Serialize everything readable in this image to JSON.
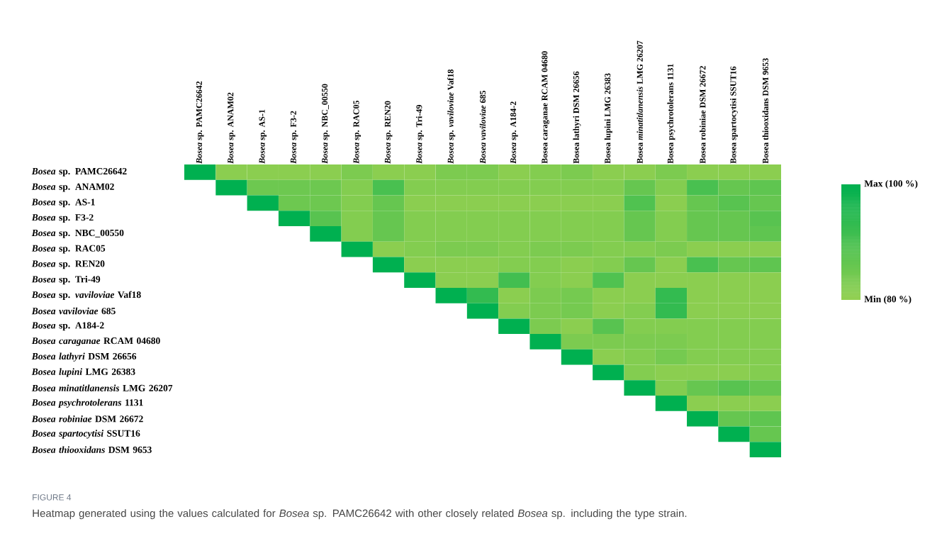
{
  "chart_data": {
    "type": "heatmap",
    "categories": [
      "*Bosea* sp. PAMC26642",
      "*Bosea* sp. ANAM02",
      "*Bosea* sp. AS-1",
      "*Bosea* sp. F3-2",
      "*Bosea* sp. NBC_00550",
      "*Bosea* sp. RAC05",
      "*Bosea* sp. REN20",
      "*Bosea* sp. Tri-49",
      "*Bosea* sp. *vaviloviae* Vaf18",
      "*Bosea vaviloviae* 685",
      "*Bosea* sp. A184-2",
      "Bosea caraganae RCAM 04680",
      "Bosea lathyri DSM 26656",
      "Bosea lupini LMG 26383",
      "Bosea *minatitlanensis* LMG 26207",
      "Bosea psychrotolerans 1131",
      "Bosea robiniae DSM 26672",
      "Bosea spartocytisi SSUT16",
      "Bosea thiooxidans DSM 9653"
    ],
    "y_categories": [
      "*Bosea* sp. PAMC26642",
      "*Bosea* sp. ANAM02",
      "*Bosea* sp. AS-1",
      "*Bosea* sp. F3-2",
      "*Bosea* sp. NBC_00550",
      "*Bosea* sp. RAC05",
      "*Bosea* sp. REN20",
      "*Bosea* sp. Tri-49",
      "*Bosea* sp. *vaviloviae* Vaf18",
      "*Bosea vaviloviae* 685",
      "*Bosea* sp. A184-2",
      "*Bosea caraganae* RCAM 04680",
      "*Bosea lathyri* DSM 26656",
      "*Bosea lupini* LMG 26383",
      "*Bosea minatitlanensis* LMG 26207",
      "*Bosea psychrotolerans* 1131",
      "*Bosea robiniae* DSM 26672",
      "*Bosea spartocytisi* SSUT16",
      "*Bosea thiooxidans* DSM 9653"
    ],
    "cells": [
      [
        100,
        81,
        81,
        81,
        81,
        83,
        81,
        81,
        83,
        83,
        81,
        82,
        83,
        81,
        81,
        83,
        81,
        81,
        81
      ],
      [
        null,
        100,
        85,
        85,
        85,
        82,
        90,
        82,
        82,
        82,
        82,
        82,
        82,
        82,
        86,
        82,
        90,
        86,
        87
      ],
      [
        null,
        null,
        100,
        85,
        85,
        82,
        86,
        81,
        81,
        81,
        81,
        81,
        81,
        81,
        89,
        81,
        86,
        88,
        86
      ],
      [
        null,
        null,
        null,
        100,
        88,
        82,
        86,
        82,
        82,
        82,
        82,
        82,
        82,
        82,
        86,
        82,
        86,
        86,
        88
      ],
      [
        null,
        null,
        null,
        null,
        100,
        82,
        86,
        82,
        82,
        82,
        82,
        82,
        82,
        82,
        86,
        82,
        86,
        86,
        87
      ],
      [
        null,
        null,
        null,
        null,
        null,
        100,
        81,
        82,
        83,
        83,
        82,
        83,
        83,
        82,
        82,
        83,
        81,
        81,
        81
      ],
      [
        null,
        null,
        null,
        null,
        null,
        null,
        100,
        81,
        81,
        81,
        82,
        82,
        81,
        82,
        86,
        81,
        90,
        86,
        87
      ],
      [
        null,
        null,
        null,
        null,
        null,
        null,
        null,
        100,
        81,
        81,
        91,
        82,
        81,
        89,
        81,
        81,
        81,
        81,
        81
      ],
      [
        null,
        null,
        null,
        null,
        null,
        null,
        null,
        null,
        100,
        93,
        81,
        83,
        84,
        81,
        81,
        93,
        81,
        81,
        81
      ],
      [
        null,
        null,
        null,
        null,
        null,
        null,
        null,
        null,
        null,
        100,
        82,
        83,
        84,
        81,
        82,
        93,
        81,
        81,
        81
      ],
      [
        null,
        null,
        null,
        null,
        null,
        null,
        null,
        null,
        null,
        null,
        100,
        83,
        81,
        88,
        82,
        82,
        82,
        82,
        82
      ],
      [
        null,
        null,
        null,
        null,
        null,
        null,
        null,
        null,
        null,
        null,
        null,
        100,
        83,
        83,
        83,
        83,
        82,
        82,
        82
      ],
      [
        null,
        null,
        null,
        null,
        null,
        null,
        null,
        null,
        null,
        null,
        null,
        null,
        100,
        81,
        82,
        84,
        82,
        82,
        82
      ],
      [
        null,
        null,
        null,
        null,
        null,
        null,
        null,
        null,
        null,
        null,
        null,
        null,
        null,
        100,
        82,
        81,
        81,
        81,
        82
      ],
      [
        null,
        null,
        null,
        null,
        null,
        null,
        null,
        null,
        null,
        null,
        null,
        null,
        null,
        null,
        100,
        82,
        86,
        88,
        86
      ],
      [
        null,
        null,
        null,
        null,
        null,
        null,
        null,
        null,
        null,
        null,
        null,
        null,
        null,
        null,
        null,
        100,
        81,
        81,
        81
      ],
      [
        null,
        null,
        null,
        null,
        null,
        null,
        null,
        null,
        null,
        null,
        null,
        null,
        null,
        null,
        null,
        null,
        100,
        86,
        87
      ],
      [
        null,
        null,
        null,
        null,
        null,
        null,
        null,
        null,
        null,
        null,
        null,
        null,
        null,
        null,
        null,
        null,
        null,
        100,
        86
      ],
      [
        null,
        null,
        null,
        null,
        null,
        null,
        null,
        null,
        null,
        null,
        null,
        null,
        null,
        null,
        null,
        null,
        null,
        null,
        100
      ]
    ],
    "clim": [
      80,
      100
    ],
    "cticks": [
      {
        "value": 80,
        "label": "Min (80 %)"
      },
      {
        "value": 100,
        "label": "Max (100 %)"
      }
    ],
    "annotations": [
      "FIGURE 4",
      "Heatmap generated using the values calculated for *Bosea* sp. PAMC26642 with other closely related *Bosea* sp. including the type strain."
    ]
  }
}
